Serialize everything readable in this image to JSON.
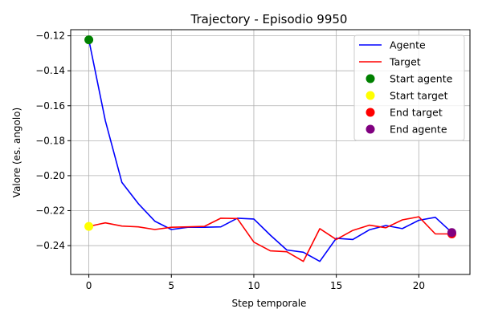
{
  "chart_data": {
    "type": "line",
    "title": "Trajectory - Episodio 9950",
    "xlabel": "Step temporale",
    "ylabel": "Valore (es. angolo)",
    "xlim": [
      -1.1,
      23.1
    ],
    "ylim": [
      -0.2565,
      -0.1165
    ],
    "xticks": [
      0,
      5,
      10,
      15,
      20
    ],
    "yticks": [
      -0.12,
      -0.14,
      -0.16,
      -0.18,
      -0.2,
      -0.22,
      -0.24
    ],
    "ytick_labels": [
      "−0.12",
      "−0.14",
      "−0.16",
      "−0.18",
      "−0.20",
      "−0.22",
      "−0.24"
    ],
    "grid": true,
    "legend_position": "top-right",
    "x": [
      0,
      1,
      2,
      3,
      4,
      5,
      6,
      7,
      8,
      9,
      10,
      11,
      12,
      13,
      14,
      15,
      16,
      17,
      18,
      19,
      20,
      21,
      22
    ],
    "series": [
      {
        "name": "Agente",
        "color": "#0000ff",
        "values": [
          -0.1223,
          -0.1685,
          -0.2038,
          -0.216,
          -0.226,
          -0.2308,
          -0.2295,
          -0.2295,
          -0.2293,
          -0.2243,
          -0.2248,
          -0.234,
          -0.2425,
          -0.2438,
          -0.249,
          -0.2358,
          -0.2365,
          -0.231,
          -0.2285,
          -0.2303,
          -0.2255,
          -0.2238,
          -0.2325
        ]
      },
      {
        "name": "Target",
        "color": "#ff0000",
        "values": [
          -0.229,
          -0.227,
          -0.2288,
          -0.2293,
          -0.2308,
          -0.2295,
          -0.2293,
          -0.229,
          -0.2243,
          -0.2245,
          -0.238,
          -0.243,
          -0.2435,
          -0.249,
          -0.2303,
          -0.2365,
          -0.2313,
          -0.2283,
          -0.2298,
          -0.2253,
          -0.2235,
          -0.2333,
          -0.2333
        ]
      }
    ],
    "markers": [
      {
        "name": "Start agente",
        "color": "#008000",
        "x": 0,
        "y": -0.1223
      },
      {
        "name": "Start target",
        "color": "#ffff00",
        "x": 0,
        "y": -0.229
      },
      {
        "name": "End target",
        "color": "#ff0000",
        "x": 22,
        "y": -0.2333
      },
      {
        "name": "End agente",
        "color": "#800080",
        "x": 22,
        "y": -0.2325
      }
    ]
  }
}
